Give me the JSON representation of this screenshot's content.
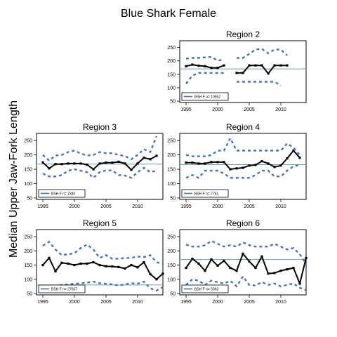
{
  "figure": {
    "title": "Blue Shark Female",
    "ylabel": "Median Upper Jaw-Fork Length"
  },
  "colors": {
    "median": "#000000",
    "bounds": "#4472c4",
    "reference": "#6a9ec9"
  },
  "chart_data": [
    {
      "type": "line",
      "title": "Region 2",
      "xlim": [
        1994,
        2014
      ],
      "ylim": [
        45,
        275
      ],
      "x_ticks": [
        1995,
        2000,
        2005,
        2010
      ],
      "y_ticks": [
        50,
        100,
        150,
        200,
        250
      ],
      "reference_line": 170,
      "legend": "BSH F n= 10552",
      "series": [
        {
          "role": "median",
          "x": [
            1995,
            1996,
            1997,
            1998,
            1999,
            2000,
            2001,
            null,
            2003,
            2004,
            2005,
            2006,
            2007,
            2008,
            2009,
            2010,
            2011
          ],
          "y": [
            180,
            186,
            182,
            180,
            174,
            174,
            183,
            null,
            155,
            155,
            183,
            183,
            183,
            153,
            183,
            183,
            183
          ]
        },
        {
          "role": "upper",
          "x": [
            1995,
            1996,
            1997,
            1998,
            1999,
            2000,
            2001,
            null,
            2003,
            2004,
            2005,
            2006,
            2007,
            2008,
            2009,
            2010,
            2011
          ],
          "y": [
            208,
            211,
            211,
            213,
            215,
            201,
            205,
            null,
            211,
            211,
            226,
            242,
            245,
            228,
            242,
            242,
            220
          ]
        },
        {
          "role": "lower",
          "x": [
            1995,
            1996,
            1997,
            1998,
            1999,
            2000,
            2001,
            null,
            2003,
            2004,
            2005,
            2006,
            2007,
            2008,
            2009,
            2010
          ],
          "y": [
            115,
            145,
            155,
            155,
            155,
            155,
            155,
            null,
            122,
            122,
            122,
            122,
            122,
            122,
            122,
            108
          ]
        }
      ]
    },
    {
      "type": "line",
      "title": "Region 3",
      "xlim": [
        1994,
        2014
      ],
      "ylim": [
        45,
        275
      ],
      "x_ticks": [
        1995,
        2000,
        2005,
        2010
      ],
      "y_ticks": [
        50,
        100,
        150,
        200,
        250
      ],
      "reference_line": 168,
      "legend": "BSH F n= 2340",
      "series": [
        {
          "role": "median",
          "x": [
            1995,
            1996,
            1997,
            1998,
            1999,
            2000,
            2001,
            2002,
            2003,
            2004,
            2005,
            2006,
            2007,
            2008,
            2009,
            2010,
            2011,
            2012,
            2013
          ],
          "y": [
            174,
            153,
            168,
            168,
            170,
            170,
            170,
            166,
            150,
            170,
            173,
            173,
            176,
            170,
            148,
            170,
            190,
            185,
            197
          ]
        },
        {
          "role": "upper",
          "x": [
            1995,
            1996,
            1997,
            1998,
            1999,
            2000,
            2001,
            2002,
            2003,
            2004,
            2005,
            2006,
            2007,
            2008,
            2009,
            2010,
            2011,
            2012,
            2013
          ],
          "y": [
            200,
            180,
            198,
            200,
            210,
            215,
            205,
            198,
            200,
            210,
            206,
            206,
            200,
            196,
            185,
            200,
            220,
            210,
            265
          ]
        },
        {
          "role": "lower",
          "x": [
            1995,
            1996,
            1997,
            1998,
            1999,
            2000,
            2001,
            2002,
            2003,
            2004,
            2005,
            2006,
            2007,
            2008,
            2009,
            2010,
            2011,
            2012,
            2013
          ],
          "y": [
            135,
            125,
            125,
            130,
            145,
            150,
            145,
            140,
            120,
            140,
            146,
            146,
            130,
            128,
            120,
            140,
            155,
            140,
            145
          ]
        }
      ]
    },
    {
      "type": "line",
      "title": "Region 4",
      "xlim": [
        1994,
        2014
      ],
      "ylim": [
        45,
        275
      ],
      "x_ticks": [
        1995,
        2000,
        2005,
        2010
      ],
      "y_ticks": [
        50,
        100,
        150,
        200,
        250
      ],
      "reference_line": 166,
      "legend": "BSH F n= 7761",
      "series": [
        {
          "role": "median",
          "x": [
            1995,
            1996,
            1997,
            1998,
            1999,
            2000,
            2001,
            2002,
            2003,
            2004,
            2005,
            2006,
            2007,
            2008,
            2009,
            2010,
            2011,
            2012,
            2013
          ],
          "y": [
            173,
            173,
            170,
            170,
            175,
            175,
            175,
            150,
            153,
            155,
            163,
            165,
            178,
            170,
            158,
            163,
            188,
            215,
            190
          ]
        },
        {
          "role": "upper",
          "x": [
            1995,
            1996,
            1997,
            1998,
            1999,
            2000,
            2001,
            2002,
            2003,
            2004,
            2005,
            2006,
            2007,
            2008,
            2009,
            2010,
            2011,
            2012,
            2013
          ],
          "y": [
            200,
            195,
            195,
            195,
            200,
            215,
            215,
            258,
            215,
            215,
            215,
            215,
            215,
            215,
            215,
            215,
            240,
            225,
            200
          ]
        },
        {
          "role": "lower",
          "x": [
            1995,
            1996,
            1997,
            1998,
            1999,
            2000,
            2001,
            2002,
            2003,
            2004,
            2005,
            2006,
            2007,
            2008,
            2009,
            2010,
            2011,
            2012,
            2013
          ],
          "y": [
            120,
            130,
            120,
            145,
            145,
            145,
            135,
            120,
            120,
            120,
            120,
            130,
            145,
            145,
            125,
            125,
            145,
            160,
            165
          ]
        }
      ]
    },
    {
      "type": "line",
      "title": "Region 5",
      "xlim": [
        1994,
        2014
      ],
      "ylim": [
        45,
        275
      ],
      "x_ticks": [
        1995,
        2000,
        2005,
        2010
      ],
      "y_ticks": [
        50,
        100,
        150,
        200,
        250
      ],
      "reference_line": 80,
      "legend": "BSH F n= 27657",
      "series": [
        {
          "role": "median",
          "x": [
            1995,
            1996,
            1997,
            1998,
            1999,
            2000,
            2001,
            2002,
            2003,
            2004,
            2005,
            2006,
            2007,
            2008,
            2009,
            2010,
            2011,
            2012,
            2013,
            2014
          ],
          "y": [
            150,
            175,
            128,
            158,
            155,
            150,
            155,
            155,
            160,
            150,
            146,
            145,
            143,
            138,
            150,
            142,
            160,
            118,
            100,
            120
          ]
        },
        {
          "role": "upper",
          "x": [
            1995,
            1996,
            1997,
            1998,
            1999,
            2000,
            2001,
            2002,
            2003,
            2004,
            2005,
            2006,
            2007,
            2008,
            2009,
            2010,
            2011,
            2012,
            2013,
            2014
          ],
          "y": [
            218,
            232,
            205,
            185,
            188,
            192,
            210,
            222,
            205,
            175,
            185,
            172,
            172,
            175,
            175,
            180,
            178,
            185,
            160,
            155
          ]
        },
        {
          "role": "lower",
          "x": [
            1995,
            1996,
            1997,
            1998,
            1999,
            2000,
            2001,
            2002,
            2003,
            2004,
            2005,
            2006,
            2007,
            2008,
            2009,
            2010,
            2011,
            2012,
            2013,
            2014
          ],
          "y": [
            75,
            72,
            78,
            80,
            82,
            84,
            86,
            88,
            92,
            86,
            84,
            82,
            78,
            82,
            86,
            84,
            92,
            68,
            60,
            72
          ]
        }
      ]
    },
    {
      "type": "line",
      "title": "Region 6",
      "xlim": [
        1994,
        2014
      ],
      "ylim": [
        45,
        275
      ],
      "x_ticks": [
        1995,
        2000,
        2005,
        2010
      ],
      "y_ticks": [
        50,
        100,
        150,
        200,
        250
      ],
      "reference_line": 170,
      "legend": "BSH F n= 5963",
      "series": [
        {
          "role": "median",
          "x": [
            1995,
            1996,
            1997,
            1998,
            1999,
            2000,
            2001,
            2002,
            2003,
            2004,
            2005,
            2006,
            2007,
            2008,
            2009,
            2010,
            2011,
            2012,
            2013,
            2014
          ],
          "y": [
            140,
            172,
            155,
            130,
            170,
            148,
            165,
            140,
            130,
            190,
            163,
            140,
            180,
            120,
            122,
            130,
            135,
            140,
            85,
            175
          ]
        },
        {
          "role": "upper",
          "x": [
            1995,
            1996,
            1997,
            1998,
            1999,
            2000,
            2001,
            2002,
            2003,
            2004,
            2005,
            2006,
            2007,
            2008,
            2009,
            2010,
            2011,
            2012,
            2013,
            2014
          ],
          "y": [
            222,
            215,
            215,
            220,
            235,
            225,
            215,
            220,
            215,
            230,
            220,
            215,
            215,
            215,
            225,
            215,
            205,
            210,
            188,
            155
          ]
        },
        {
          "role": "lower",
          "x": [
            1995,
            1996,
            1997,
            1998,
            1999,
            2000,
            2001,
            2002,
            2003,
            2004,
            2005,
            2006,
            2007,
            2008,
            2009,
            2010,
            2011,
            2012,
            2013,
            2014
          ],
          "y": [
            80,
            100,
            95,
            80,
            95,
            90,
            85,
            95,
            75,
            110,
            80,
            78,
            90,
            80,
            85,
            75,
            80,
            85,
            70,
            62
          ]
        }
      ]
    }
  ]
}
